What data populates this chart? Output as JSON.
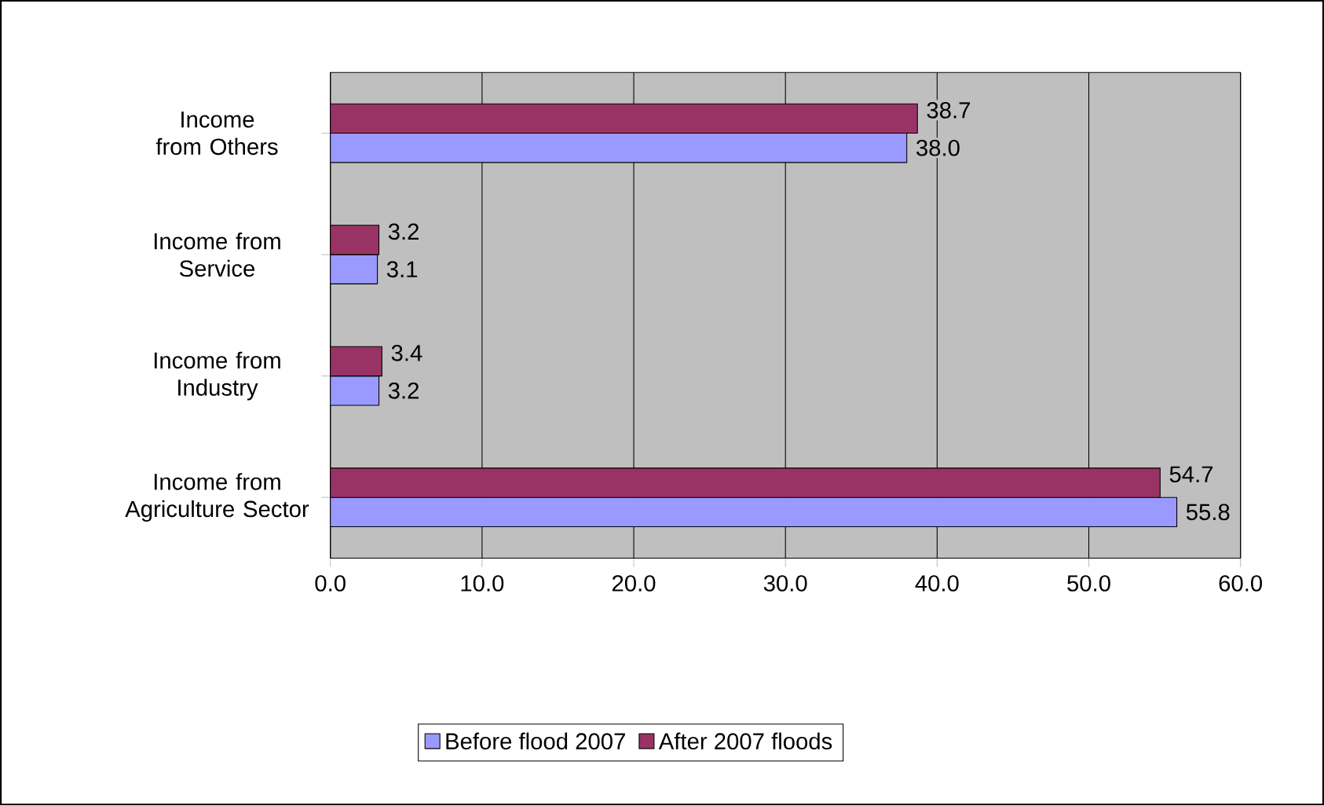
{
  "chart_data": {
    "type": "bar",
    "orientation": "horizontal",
    "categories": [
      "Income from Others",
      "Income from Service",
      "Income from Industry",
      "Income from Agriculture Sector"
    ],
    "series": [
      {
        "name": "Before flood 2007",
        "color": "#9999ff",
        "values": [
          38.0,
          3.1,
          3.2,
          55.8
        ],
        "value_labels": [
          "38.0",
          "3.1",
          "3.2",
          "55.8"
        ]
      },
      {
        "name": "After 2007 floods",
        "color": "#993366",
        "values": [
          38.7,
          3.2,
          3.4,
          54.7
        ],
        "value_labels": [
          "38.7",
          "3.2",
          "3.4",
          "54.7"
        ]
      }
    ],
    "xlim": [
      0,
      60
    ],
    "xticks": [
      {
        "value": 0,
        "label": "0.0"
      },
      {
        "value": 10,
        "label": "10.0"
      },
      {
        "value": 20,
        "label": "20.0"
      },
      {
        "value": 30,
        "label": "30.0"
      },
      {
        "value": 40,
        "label": "40.0"
      },
      {
        "value": 50,
        "label": "50.0"
      },
      {
        "value": 60,
        "label": "60.0"
      }
    ],
    "grid": "x",
    "legend": "bottom"
  }
}
